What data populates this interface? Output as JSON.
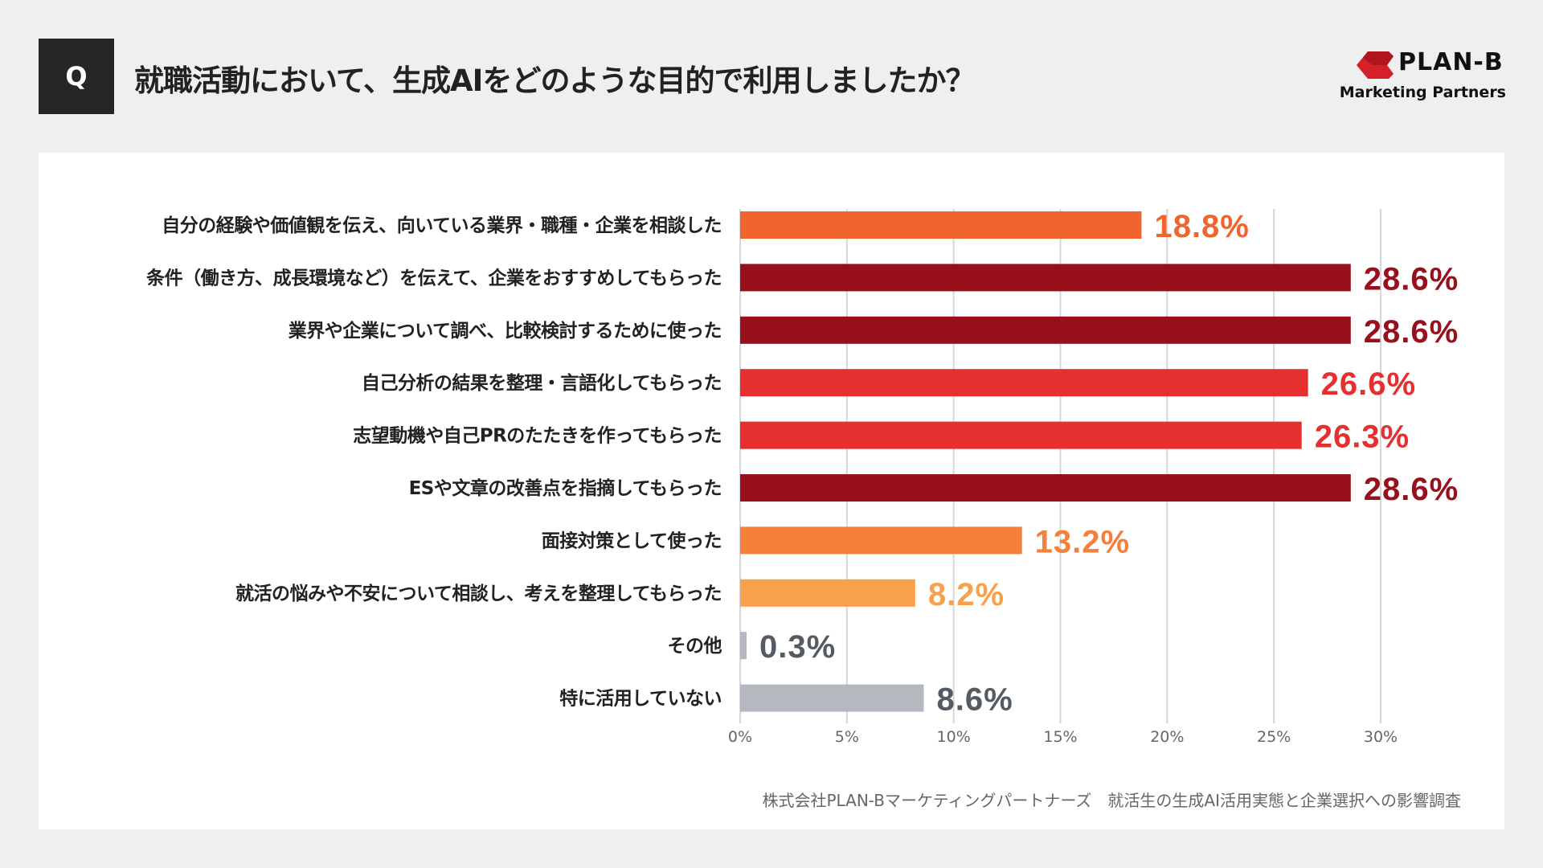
{
  "header": {
    "q_label": "Q",
    "title": "就職活動において、生成AIをどのような目的で利用しましたか？"
  },
  "logo": {
    "brand": "PLAN-B",
    "sub": "Marketing Partners",
    "color": "#d42027"
  },
  "footer": "株式会社PLAN-Bマーケティングパートナーズ　就活生の生成AI活用実態と企業選択への影響調査",
  "chart_data": {
    "type": "bar",
    "orientation": "horizontal",
    "categories": [
      "自分の経験や価値観を伝え、向いている業界・職種・企業を相談した",
      "条件（働き方、成長環境など）を伝えて、企業をおすすめしてもらった",
      "業界や企業について調べ、比較検討するために使った",
      "自己分析の結果を整理・言語化してもらった",
      "志望動機や自己PRのたたきを作ってもらった",
      "ESや文章の改善点を指摘してもらった",
      "面接対策として使った",
      "就活の悩みや不安について相談し、考えを整理してもらった",
      "その他",
      "特に活用していない"
    ],
    "values": [
      18.8,
      28.6,
      28.6,
      26.6,
      26.3,
      28.6,
      13.2,
      8.2,
      0.3,
      8.6
    ],
    "data_labels": [
      "18.8%",
      "28.6%",
      "28.6%",
      "26.6%",
      "26.3%",
      "28.6%",
      "13.2%",
      "8.2%",
      "0.3%",
      "8.6%"
    ],
    "colors": [
      "#f0642e",
      "#97101c",
      "#97101c",
      "#e5302f",
      "#e5302f",
      "#97101c",
      "#f4803a",
      "#f8a04b",
      "#b5b8bf",
      "#b5b8bf"
    ],
    "label_colors": [
      "#f0642e",
      "#97101c",
      "#97101c",
      "#e5302f",
      "#e5302f",
      "#97101c",
      "#f4803a",
      "#f8a04b",
      "#555b63",
      "#555b63"
    ],
    "xticks": [
      "0%",
      "5%",
      "10%",
      "15%",
      "20%",
      "25%",
      "30%"
    ],
    "xlim": [
      0,
      30
    ],
    "grid": true
  }
}
